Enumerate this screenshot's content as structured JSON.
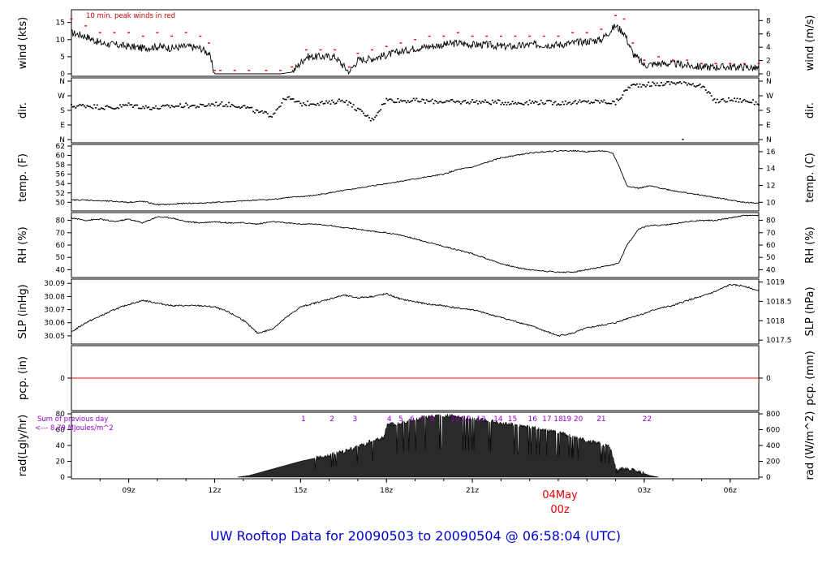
{
  "footer_title": "UW Rooftop Data for 20090503  to  20090504 @ 06:58:04  (UTC)",
  "date_marker": {
    "date": "04May",
    "time": "00z"
  },
  "time_axis": {
    "start_hour": 7,
    "end_hour": 31,
    "labels": [
      {
        "hour": 9,
        "text": "09z"
      },
      {
        "hour": 12,
        "text": "12z"
      },
      {
        "hour": 15,
        "text": "15z"
      },
      {
        "hour": 18,
        "text": "18z"
      },
      {
        "hour": 21,
        "text": "21z"
      },
      {
        "hour": 27,
        "text": "03z"
      },
      {
        "hour": 30,
        "text": "06z"
      }
    ]
  },
  "annotations": {
    "peak_wind_note": "10 min. peak winds in red",
    "sum_note_line1": "Sum of previous day",
    "sum_note_line2": "<--- 8.79 MJoules/m^2"
  },
  "chart_data": [
    {
      "type": "line",
      "id": "wind",
      "ylabel_left": "wind (kts)",
      "ylabel_right": "wind (m/s)",
      "ylim": [
        0,
        18
      ],
      "left_ticks": [
        "0",
        "5",
        "10",
        "15"
      ],
      "right_ticks": [
        "0",
        "2",
        "4",
        "6",
        "8",
        "10"
      ],
      "x_hours": [
        7,
        7.5,
        8,
        8.5,
        9,
        9.5,
        10,
        10.5,
        11,
        11.5,
        11.8,
        12.0,
        12.2,
        12.7,
        13.2,
        13.8,
        14.3,
        14.7,
        15.2,
        15.7,
        16.2,
        16.7,
        17.0,
        17.5,
        18.0,
        18.5,
        19,
        19.5,
        20,
        20.5,
        21,
        21.5,
        22,
        22.5,
        23,
        23.5,
        24,
        24.5,
        25,
        25.5,
        26,
        26.3,
        26.6,
        27,
        27.5,
        28,
        28.5,
        29,
        29.5,
        30,
        30.5,
        31
      ],
      "values": [
        12,
        11,
        9,
        8.5,
        8,
        7.5,
        8,
        7.5,
        8,
        7.5,
        6,
        0,
        0,
        0,
        0,
        0,
        0,
        0.5,
        5,
        5,
        5,
        0.5,
        4,
        4.5,
        5.5,
        6.5,
        7.5,
        8,
        8.5,
        9,
        8.5,
        8.5,
        8,
        8,
        8.5,
        8.5,
        8.5,
        9,
        9.5,
        10,
        14,
        12,
        6,
        2.5,
        3,
        3,
        2.5,
        2,
        2,
        2,
        2,
        1.5
      ],
      "peaks": [
        16,
        14,
        12,
        12,
        12,
        11,
        12,
        11,
        12,
        11,
        9,
        1,
        1,
        1,
        1,
        1,
        1,
        2,
        7,
        7,
        7,
        2,
        6,
        7,
        8,
        9,
        10,
        11,
        11,
        12,
        11,
        11,
        11,
        11,
        11,
        11,
        11,
        12,
        12,
        13,
        17,
        16,
        9,
        4,
        5,
        4,
        4,
        3,
        3,
        3,
        3,
        3
      ]
    },
    {
      "type": "scatter",
      "id": "direction",
      "ylabel_left": "dir.",
      "ylabel_right": "dir.",
      "ylim": [
        0,
        360
      ],
      "left_ticks": [
        "N",
        "E",
        "S",
        "W",
        "N"
      ],
      "right_ticks": [
        "N",
        "E",
        "S",
        "W",
        "N"
      ],
      "x_hours": [
        7,
        7.5,
        8,
        8.5,
        9,
        9.5,
        10,
        10.5,
        11,
        11.5,
        12,
        12.5,
        13,
        13.5,
        14,
        14.5,
        15,
        15.5,
        16,
        16.5,
        17,
        17.5,
        18,
        18.5,
        19,
        19.5,
        20,
        20.5,
        21,
        21.5,
        22,
        22.5,
        23,
        23.5,
        24,
        24.5,
        25,
        25.5,
        26,
        26.5,
        27,
        27.5,
        28,
        28.5,
        29,
        29.5,
        30,
        30.5,
        31
      ],
      "values": [
        205,
        210,
        200,
        195,
        215,
        200,
        195,
        205,
        210,
        205,
        220,
        215,
        205,
        170,
        150,
        260,
        220,
        225,
        225,
        245,
        185,
        120,
        245,
        240,
        240,
        235,
        235,
        230,
        235,
        230,
        230,
        225,
        230,
        230,
        225,
        230,
        230,
        235,
        225,
        330,
        340,
        340,
        350,
        350,
        330,
        235,
        245,
        240,
        225
      ]
    },
    {
      "type": "line",
      "id": "temperature",
      "ylabel_left": "temp. (F)",
      "ylabel_right": "temp. (C)",
      "ylim": [
        48.5,
        62
      ],
      "left_ticks": [
        "50",
        "52",
        "54",
        "56",
        "58",
        "60",
        "62"
      ],
      "right_ticks": [
        "10",
        "12",
        "14",
        "16"
      ],
      "x_hours": [
        7,
        7.5,
        8,
        8.5,
        9,
        9.5,
        10,
        10.5,
        11,
        11.5,
        12,
        12.5,
        13,
        13.5,
        14,
        14.5,
        15,
        15.5,
        16,
        16.5,
        17,
        17.5,
        18,
        18.5,
        19,
        19.5,
        20,
        20.5,
        21,
        21.5,
        22,
        22.5,
        23,
        23.5,
        24,
        24.5,
        25,
        25.5,
        25.9,
        26.1,
        26.4,
        26.8,
        27.2,
        27.6,
        28,
        28.5,
        29,
        29.5,
        30,
        30.5,
        31
      ],
      "values": [
        50.5,
        50.5,
        50.3,
        50.2,
        50.0,
        50.2,
        49.5,
        49.6,
        49.8,
        49.8,
        50.0,
        50.1,
        50.3,
        50.5,
        50.6,
        51.0,
        51.2,
        51.5,
        52.0,
        52.5,
        53.0,
        53.5,
        54.0,
        54.5,
        55.0,
        55.5,
        56.0,
        57.0,
        57.5,
        58.5,
        59.5,
        60.0,
        60.5,
        60.8,
        61.0,
        61.0,
        60.8,
        61.0,
        60.5,
        58.0,
        53.5,
        53.0,
        53.5,
        53.0,
        52.5,
        52.0,
        51.5,
        51.0,
        50.5,
        50.0,
        49.8
      ]
    },
    {
      "type": "line",
      "id": "rh",
      "ylabel_left": "RH (%)",
      "ylabel_right": "RH (%)",
      "ylim": [
        35,
        85
      ],
      "left_ticks": [
        "40",
        "50",
        "60",
        "70",
        "80"
      ],
      "right_ticks": [
        "40",
        "50",
        "60",
        "70",
        "80"
      ],
      "x_hours": [
        7,
        7.5,
        8,
        8.5,
        9,
        9.5,
        10,
        10.5,
        11,
        11.5,
        12,
        12.5,
        13,
        13.5,
        14,
        14.5,
        15,
        15.5,
        16,
        16.5,
        17,
        17.5,
        18,
        18.5,
        19,
        19.5,
        20,
        20.5,
        21,
        21.5,
        22,
        22.5,
        23,
        23.5,
        24,
        24.5,
        25,
        25.5,
        25.9,
        26.1,
        26.4,
        26.8,
        27.2,
        27.6,
        28,
        28.5,
        29,
        29.5,
        30,
        30.5,
        31
      ],
      "values": [
        82,
        80,
        81,
        79,
        81,
        78,
        83,
        82,
        79,
        78,
        79,
        78,
        78,
        77,
        79,
        78,
        77,
        77,
        76,
        74,
        73,
        71,
        70,
        68,
        65,
        62,
        59,
        56,
        53,
        49,
        45,
        42,
        40,
        39,
        38,
        38,
        40,
        42,
        44,
        45,
        60,
        73,
        76,
        76,
        77,
        79,
        80,
        80,
        82,
        84,
        84
      ]
    },
    {
      "type": "line",
      "id": "slp",
      "ylabel_left": "SLP (inHg)",
      "ylabel_right": "SLP (hPa)",
      "ylim": [
        30.045,
        30.092
      ],
      "left_ticks": [
        "30.05",
        "30.06",
        "30.07",
        "30.08",
        "30.09"
      ],
      "right_ticks": [
        "1017.5",
        "1018",
        "1018.5",
        "1019"
      ],
      "x_hours": [
        7,
        7.5,
        8,
        8.5,
        9,
        9.5,
        10,
        10.5,
        11,
        11.5,
        12,
        12.5,
        13,
        13.5,
        14,
        14.5,
        15,
        15.5,
        16,
        16.5,
        17,
        17.5,
        18,
        18.5,
        19,
        19.5,
        20,
        20.5,
        21,
        21.5,
        22,
        22.5,
        23,
        23.5,
        24,
        24.5,
        25,
        25.5,
        26,
        26.5,
        27,
        27.5,
        28,
        28.5,
        29,
        29.5,
        30,
        30.5,
        31
      ],
      "values": [
        30.053,
        30.06,
        30.065,
        30.07,
        30.074,
        30.077,
        30.075,
        30.073,
        30.073,
        30.073,
        30.072,
        30.068,
        30.062,
        30.052,
        30.055,
        30.064,
        30.072,
        30.075,
        30.078,
        30.081,
        30.079,
        30.08,
        30.082,
        30.078,
        30.076,
        30.074,
        30.073,
        30.071,
        30.07,
        30.067,
        30.064,
        30.061,
        30.058,
        30.054,
        30.05,
        30.052,
        30.056,
        30.058,
        30.06,
        30.064,
        30.067,
        30.071,
        30.073,
        30.077,
        30.08,
        30.084,
        30.089,
        30.088,
        30.084
      ]
    },
    {
      "type": "line",
      "id": "precip",
      "ylabel_left": "pcp. (in)",
      "ylabel_right": "pcp. (mm)",
      "ylim": [
        -1,
        1
      ],
      "left_ticks": [
        "0"
      ],
      "right_ticks": [
        "0"
      ],
      "x_hours": [
        7,
        31
      ],
      "values": [
        0,
        0
      ]
    },
    {
      "type": "area",
      "id": "radiation",
      "ylabel_left": "rad(Lgly/hr)",
      "ylabel_right": "rad (W/m^2)",
      "ylim": [
        0,
        80
      ],
      "left_ticks": [
        "0",
        "20",
        "40",
        "60",
        "80"
      ],
      "right_ticks": [
        "0",
        "200",
        "400",
        "600",
        "800"
      ],
      "hour_labels": [
        "1",
        "2",
        "3",
        "4",
        "5",
        "6",
        "7",
        "8",
        "10",
        "12",
        "13",
        "14",
        "15",
        "16",
        "17",
        "18",
        "19",
        "20",
        "21",
        "22"
      ],
      "hour_label_hours": [
        15.1,
        16.1,
        16.9,
        18.1,
        18.5,
        18.9,
        19.25,
        19.6,
        20.4,
        20.8,
        21.3,
        21.9,
        22.4,
        23.1,
        23.6,
        24.0,
        24.3,
        24.7,
        25.5,
        27.1
      ],
      "x_hours": [
        12.8,
        13.2,
        13.6,
        14.0,
        14.5,
        15.0,
        15.5,
        16.0,
        16.5,
        17.0,
        17.5,
        17.9,
        18.05,
        18.3,
        18.6,
        19.0,
        19.5,
        20.0,
        20.5,
        21.0,
        21.5,
        22.0,
        22.5,
        23.0,
        23.5,
        24.0,
        24.5,
        25.0,
        25.5,
        25.8,
        26.0,
        26.3,
        26.6,
        26.9,
        27.2,
        27.5
      ],
      "values": [
        0,
        2,
        6,
        10,
        15,
        20,
        24,
        28,
        32,
        38,
        46,
        50,
        68,
        66,
        70,
        73,
        77,
        78,
        76,
        74,
        72,
        68,
        66,
        63,
        60,
        56,
        52,
        46,
        42,
        38,
        12,
        10,
        10,
        6,
        2,
        0
      ]
    }
  ]
}
